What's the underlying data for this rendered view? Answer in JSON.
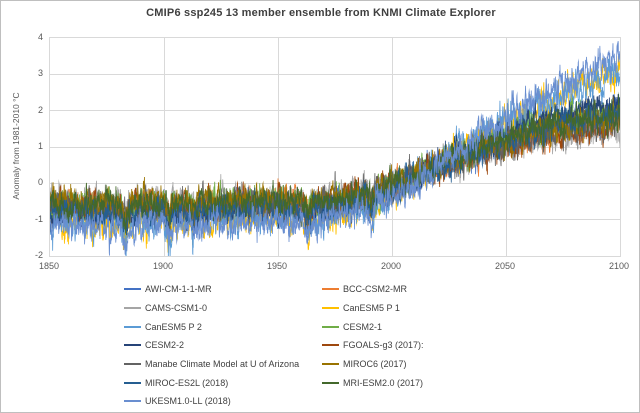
{
  "chart_data": {
    "type": "line",
    "title": "CMIP6 ssp245 13 member ensemble from KNMI Climate Explorer",
    "xlabel": "",
    "ylabel": "Anomaly from 1981-2010 °C",
    "xlim": [
      1850,
      2100
    ],
    "ylim": [
      -2,
      4
    ],
    "x_ticks": [
      "1850",
      "1900",
      "1950",
      "2000",
      "2050",
      "2100"
    ],
    "y_ticks": [
      "4",
      "3",
      "2",
      "1",
      "0",
      "-1",
      "-2"
    ],
    "grid": true,
    "legend_position": "bottom",
    "resolution_months_per_point": 1,
    "anchor_years": [
      1850,
      1880,
      1900,
      1920,
      1940,
      1960,
      1970,
      1980,
      1990,
      2000,
      2010,
      2020,
      2030,
      2040,
      2050,
      2060,
      2070,
      2080,
      2090,
      2100
    ],
    "volcanic_dips": [
      {
        "year": 1883,
        "depth": 0.5,
        "width": 1.2
      },
      {
        "year": 1902,
        "depth": 0.35,
        "width": 1.2
      },
      {
        "year": 1913,
        "depth": 0.2,
        "width": 1.0
      },
      {
        "year": 1963,
        "depth": 0.3,
        "width": 1.5
      },
      {
        "year": 1991,
        "depth": 0.35,
        "width": 1.2
      }
    ],
    "noise": {
      "ar": 0.72,
      "innovation": 0.22,
      "fine": 0.05
    },
    "series": [
      {
        "name": "AWI-CM-1-1-MR",
        "color": "#4472C4",
        "seed": 11,
        "noise_scale": 1.0,
        "dip_scale": 1.0,
        "anchors": [
          -0.7,
          -0.75,
          -0.7,
          -0.7,
          -0.6,
          -0.65,
          -0.6,
          -0.5,
          -0.35,
          -0.1,
          0.15,
          0.45,
          0.7,
          0.95,
          1.15,
          1.35,
          1.5,
          1.65,
          1.8,
          1.9
        ]
      },
      {
        "name": "BCC-CSM2-MR",
        "color": "#ED7D31",
        "seed": 22,
        "noise_scale": 1.0,
        "dip_scale": 1.0,
        "anchors": [
          -0.6,
          -0.65,
          -0.6,
          -0.6,
          -0.5,
          -0.55,
          -0.55,
          -0.45,
          -0.3,
          -0.05,
          0.2,
          0.45,
          0.7,
          0.9,
          1.1,
          1.25,
          1.4,
          1.55,
          1.65,
          1.75
        ]
      },
      {
        "name": "CAMS-CSM1-0",
        "color": "#A5A5A5",
        "seed": 33,
        "noise_scale": 1.1,
        "dip_scale": 0.8,
        "anchors": [
          -0.45,
          -0.5,
          -0.45,
          -0.45,
          -0.4,
          -0.45,
          -0.4,
          -0.35,
          -0.2,
          0.0,
          0.2,
          0.45,
          0.65,
          0.85,
          1.0,
          1.15,
          1.25,
          1.35,
          1.45,
          1.5
        ]
      },
      {
        "name": "CanESM5 P 1",
        "color": "#FFC000",
        "seed": 44,
        "noise_scale": 1.25,
        "dip_scale": 1.3,
        "anchors": [
          -1.0,
          -1.05,
          -1.0,
          -1.0,
          -0.9,
          -0.95,
          -0.9,
          -0.75,
          -0.55,
          -0.25,
          0.15,
          0.55,
          0.95,
          1.3,
          1.65,
          1.95,
          2.25,
          2.5,
          2.8,
          3.0
        ]
      },
      {
        "name": "CanESM5 P 2",
        "color": "#5B9BD5",
        "seed": 55,
        "noise_scale": 1.25,
        "dip_scale": 1.3,
        "anchors": [
          -1.0,
          -1.0,
          -1.05,
          -0.95,
          -0.9,
          -0.95,
          -0.9,
          -0.75,
          -0.55,
          -0.25,
          0.15,
          0.55,
          0.95,
          1.3,
          1.65,
          1.95,
          2.25,
          2.55,
          2.75,
          2.95
        ]
      },
      {
        "name": "CESM2-1",
        "color": "#70AD47",
        "seed": 66,
        "noise_scale": 1.0,
        "dip_scale": 1.0,
        "anchors": [
          -0.55,
          -0.6,
          -0.55,
          -0.55,
          -0.45,
          -0.5,
          -0.5,
          -0.4,
          -0.25,
          0.0,
          0.25,
          0.55,
          0.8,
          1.05,
          1.3,
          1.5,
          1.7,
          1.85,
          2.0,
          2.1
        ]
      },
      {
        "name": "CESM2-2",
        "color": "#264478",
        "seed": 77,
        "noise_scale": 1.0,
        "dip_scale": 1.0,
        "anchors": [
          -0.8,
          -0.85,
          -0.8,
          -0.8,
          -0.7,
          -0.75,
          -0.7,
          -0.6,
          -0.4,
          -0.15,
          0.15,
          0.5,
          0.8,
          1.1,
          1.35,
          1.6,
          1.8,
          1.95,
          2.1,
          2.2
        ]
      },
      {
        "name": "FGOALS-g3 (2017):",
        "color": "#9E480E",
        "seed": 88,
        "noise_scale": 1.0,
        "dip_scale": 0.9,
        "anchors": [
          -0.55,
          -0.6,
          -0.55,
          -0.55,
          -0.5,
          -0.55,
          -0.5,
          -0.45,
          -0.3,
          -0.05,
          0.2,
          0.45,
          0.65,
          0.85,
          1.0,
          1.15,
          1.3,
          1.4,
          1.5,
          1.6
        ]
      },
      {
        "name": "Manabe Climate Model at U of Arizona",
        "color": "#636363",
        "seed": 99,
        "noise_scale": 1.15,
        "dip_scale": 0.8,
        "anchors": [
          -0.6,
          -0.65,
          -0.6,
          -0.6,
          -0.55,
          -0.6,
          -0.55,
          -0.45,
          -0.3,
          -0.05,
          0.2,
          0.45,
          0.7,
          0.9,
          1.1,
          1.25,
          1.4,
          1.5,
          1.6,
          1.7
        ]
      },
      {
        "name": "MIROC6 (2017)",
        "color": "#997300",
        "seed": 110,
        "noise_scale": 1.0,
        "dip_scale": 1.0,
        "anchors": [
          -0.5,
          -0.55,
          -0.5,
          -0.5,
          -0.45,
          -0.5,
          -0.45,
          -0.4,
          -0.25,
          0.0,
          0.25,
          0.5,
          0.75,
          0.95,
          1.15,
          1.35,
          1.5,
          1.6,
          1.7,
          1.8
        ]
      },
      {
        "name": "MIROC-ES2L (2018)",
        "color": "#255E91",
        "seed": 121,
        "noise_scale": 1.0,
        "dip_scale": 1.0,
        "anchors": [
          -0.8,
          -0.85,
          -0.8,
          -0.8,
          -0.7,
          -0.75,
          -0.7,
          -0.6,
          -0.45,
          -0.2,
          0.1,
          0.4,
          0.7,
          0.95,
          1.2,
          1.4,
          1.6,
          1.75,
          1.9,
          2.0
        ]
      },
      {
        "name": "MRI-ESM2.0 (2017)",
        "color": "#43682B",
        "seed": 132,
        "noise_scale": 1.0,
        "dip_scale": 1.0,
        "anchors": [
          -0.55,
          -0.6,
          -0.55,
          -0.55,
          -0.45,
          -0.5,
          -0.5,
          -0.4,
          -0.25,
          -0.05,
          0.2,
          0.5,
          0.75,
          1.0,
          1.2,
          1.4,
          1.55,
          1.7,
          1.8,
          1.9
        ]
      },
      {
        "name": "UKESM1.0-LL (2018)",
        "color": "#698ED0",
        "seed": 143,
        "noise_scale": 1.15,
        "dip_scale": 1.2,
        "anchors": [
          -1.15,
          -1.2,
          -1.15,
          -1.15,
          -1.05,
          -1.1,
          -1.05,
          -0.9,
          -0.7,
          -0.4,
          0.0,
          0.45,
          0.95,
          1.4,
          1.85,
          2.25,
          2.6,
          2.9,
          3.2,
          3.4
        ]
      }
    ]
  },
  "style": {
    "gridline_color": "#d9d9d9",
    "plot_border_color": "#d9d9d9",
    "tick_label_color": "#595959",
    "title_color": "#3f3f3f",
    "legend_label_color": "#404040"
  }
}
